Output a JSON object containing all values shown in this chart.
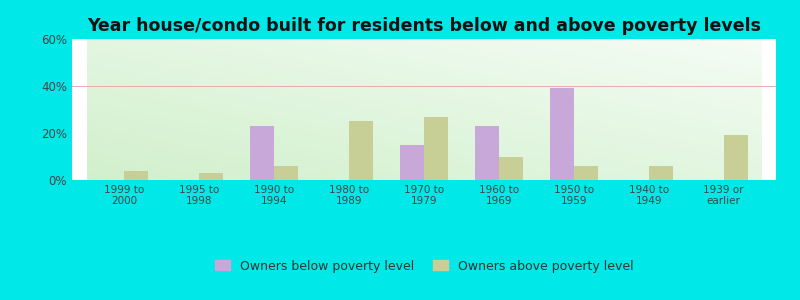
{
  "title": "Year house/condo built for residents below and above poverty levels",
  "categories": [
    "1999 to\n2000",
    "1995 to\n1998",
    "1990 to\n1994",
    "1980 to\n1989",
    "1970 to\n1979",
    "1960 to\n1969",
    "1950 to\n1959",
    "1940 to\n1949",
    "1939 or\nearlier"
  ],
  "below_poverty": [
    0,
    0,
    23,
    0,
    15,
    23,
    39,
    0,
    0
  ],
  "above_poverty": [
    4,
    3,
    6,
    25,
    27,
    10,
    6,
    6,
    19
  ],
  "below_color": "#c8a8d8",
  "above_color": "#c8cf96",
  "ylim_max": 60,
  "yticks": [
    0,
    20,
    40,
    60
  ],
  "ytick_labels": [
    "0%",
    "20%",
    "40%",
    "60%"
  ],
  "outer_bg": "#00e8e8",
  "bar_width": 0.32,
  "title_fontsize": 12.5,
  "legend_below": "Owners below poverty level",
  "legend_above": "Owners above poverty level",
  "tick_color": "#444444",
  "grid_color": "#e8a0a0"
}
